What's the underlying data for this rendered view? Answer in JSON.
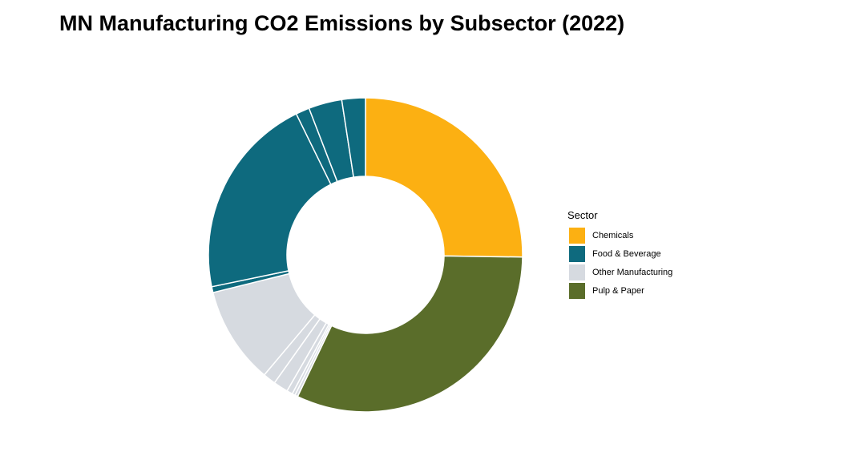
{
  "chart_data": {
    "type": "pie",
    "title": "MN Manufacturing CO2 Emissions by Subsector (2022)",
    "legend_title": "Sector",
    "legend_placement": "right",
    "sectors": [
      {
        "name": "Chemicals",
        "color": "#FCB012"
      },
      {
        "name": "Food & Beverage",
        "color": "#0E6A7E"
      },
      {
        "name": "Other Manufacturing",
        "color": "#D6DAE0"
      },
      {
        "name": "Pulp & Paper",
        "color": "#5A6D2A"
      }
    ],
    "slices": [
      {
        "sector": "Chemicals",
        "value": 25.0
      },
      {
        "sector": "Pulp & Paper",
        "value": 31.6
      },
      {
        "sector": "Other Manufacturing",
        "value": 0.3
      },
      {
        "sector": "Other Manufacturing",
        "value": 0.3
      },
      {
        "sector": "Other Manufacturing",
        "value": 0.6
      },
      {
        "sector": "Other Manufacturing",
        "value": 1.5
      },
      {
        "sector": "Other Manufacturing",
        "value": 1.3
      },
      {
        "sector": "Other Manufacturing",
        "value": 9.9
      },
      {
        "sector": "Food & Beverage",
        "value": 0.6
      },
      {
        "sector": "Food & Beverage",
        "value": 20.8
      },
      {
        "sector": "Food & Beverage",
        "value": 1.4
      },
      {
        "sector": "Food & Beverage",
        "value": 3.4
      },
      {
        "sector": "Food & Beverage",
        "value": 2.4
      }
    ]
  }
}
